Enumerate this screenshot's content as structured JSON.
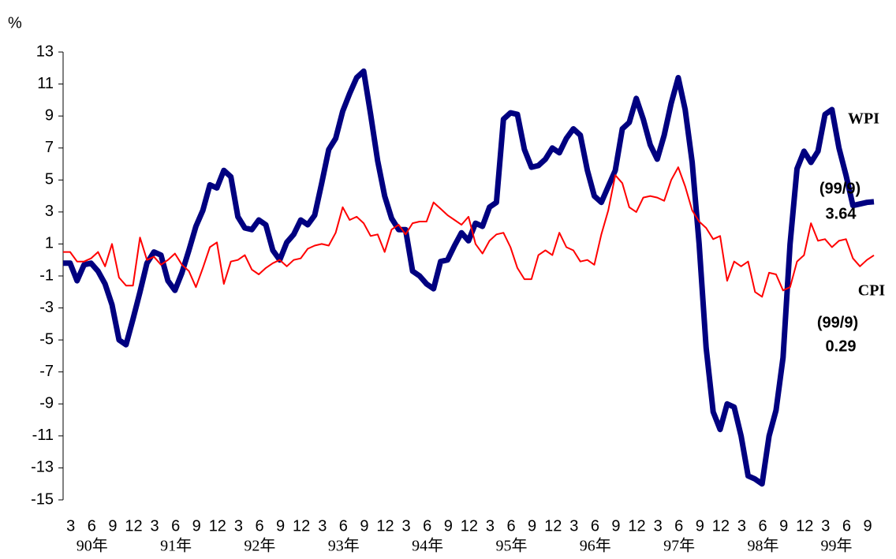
{
  "chart_data": {
    "type": "line",
    "y_unit": "%",
    "categories": [
      null,
      null,
      "3",
      null,
      null,
      "6",
      null,
      null,
      "9",
      null,
      null,
      "12",
      null,
      null,
      "3",
      null,
      null,
      "6",
      null,
      null,
      "9",
      null,
      null,
      "12",
      null,
      null,
      "3",
      null,
      null,
      "6",
      null,
      null,
      "9",
      null,
      null,
      "12",
      null,
      null,
      "3",
      null,
      null,
      "6",
      null,
      null,
      "9",
      null,
      null,
      "12",
      null,
      null,
      "3",
      null,
      null,
      "6",
      null,
      null,
      "9",
      null,
      null,
      "12",
      null,
      null,
      "3",
      null,
      null,
      "6",
      null,
      null,
      "9",
      null,
      null,
      "12",
      null,
      null,
      "3",
      null,
      null,
      "6",
      null,
      null,
      "9",
      null,
      null,
      "12",
      null,
      null,
      "3",
      null,
      null,
      "6",
      null,
      null,
      "9",
      null,
      null,
      "12",
      null,
      null,
      "3",
      null,
      null,
      "6",
      null,
      null,
      "9",
      null,
      null,
      "12",
      null,
      null,
      "3",
      null,
      null,
      "6",
      null,
      null,
      "9"
    ],
    "year_labels": [
      "90年",
      "91年",
      "92年",
      "93年",
      "94年",
      "95年",
      "96年",
      "97年",
      "98年",
      "99年"
    ],
    "series": [
      {
        "name": "WPI",
        "color": "#000080",
        "values": [
          -0.2,
          -0.2,
          -1.3,
          -0.3,
          -0.2,
          -0.7,
          -1.5,
          -2.8,
          -5.0,
          -5.3,
          -3.7,
          -2.0,
          -0.2,
          0.5,
          0.3,
          -1.3,
          -1.9,
          -0.8,
          0.6,
          2.1,
          3.1,
          4.7,
          4.5,
          5.6,
          5.2,
          2.7,
          2.0,
          1.9,
          2.5,
          2.2,
          0.6,
          0.0,
          1.1,
          1.6,
          2.5,
          2.2,
          2.8,
          4.8,
          6.9,
          7.6,
          9.3,
          10.4,
          11.4,
          11.8,
          9.1,
          6.2,
          4.0,
          2.6,
          1.9,
          1.9,
          -0.7,
          -1.0,
          -1.5,
          -1.8,
          -0.1,
          0.0,
          0.9,
          1.7,
          1.2,
          2.3,
          2.1,
          3.3,
          3.6,
          8.8,
          9.2,
          9.1,
          6.9,
          5.8,
          5.9,
          6.3,
          7.0,
          6.7,
          7.6,
          8.2,
          7.8,
          5.6,
          4.0,
          3.6,
          4.6,
          5.6,
          8.2,
          8.6,
          10.1,
          8.8,
          7.2,
          6.3,
          7.8,
          9.8,
          11.4,
          9.4,
          6.1,
          1.0,
          -5.5,
          -9.5,
          -10.6,
          -9.0,
          -9.2,
          -11.0,
          -13.5,
          -13.7,
          -14.0,
          -11.0,
          -9.4,
          -6.1,
          1.0,
          5.7,
          6.8,
          6.1,
          6.8,
          9.1,
          9.4,
          7.0,
          5.3,
          3.4,
          3.5,
          3.6,
          3.64
        ]
      },
      {
        "name": "CPI",
        "color": "#ff0000",
        "values": [
          0.5,
          0.5,
          -0.1,
          -0.1,
          0.1,
          0.5,
          -0.4,
          1.0,
          -1.1,
          -1.6,
          -1.6,
          1.4,
          0.0,
          0.2,
          -0.3,
          0.0,
          0.4,
          -0.3,
          -0.7,
          -1.7,
          -0.5,
          0.8,
          1.1,
          -1.5,
          -0.1,
          0.0,
          0.3,
          -0.6,
          -0.9,
          -0.5,
          -0.2,
          0.0,
          -0.4,
          0.0,
          0.1,
          0.7,
          0.9,
          1.0,
          0.9,
          1.7,
          3.3,
          2.5,
          2.7,
          2.3,
          1.5,
          1.6,
          0.5,
          1.9,
          2.2,
          1.6,
          2.3,
          2.4,
          2.4,
          3.6,
          3.2,
          2.8,
          2.5,
          2.2,
          2.7,
          1.0,
          0.4,
          1.2,
          1.6,
          1.7,
          0.8,
          -0.5,
          -1.2,
          -1.2,
          0.3,
          0.6,
          0.3,
          1.7,
          0.8,
          0.6,
          -0.1,
          0.0,
          -0.3,
          1.6,
          3.1,
          5.3,
          4.8,
          3.3,
          3.0,
          3.9,
          4.0,
          3.9,
          3.7,
          5.0,
          5.8,
          4.6,
          3.1,
          2.4,
          2.0,
          1.3,
          1.5,
          -1.3,
          -0.1,
          -0.4,
          -0.1,
          -2.0,
          -2.3,
          -0.8,
          -0.9,
          -1.9,
          -1.7,
          -0.1,
          0.3,
          2.3,
          1.2,
          1.3,
          0.8,
          1.2,
          1.3,
          0.1,
          -0.4,
          0.0,
          0.29
        ]
      }
    ],
    "annotations": [
      "WPI",
      "(99/9)",
      "3.64",
      "CPI",
      "(99/9)",
      "0.29"
    ],
    "ylim": [
      -15,
      13
    ],
    "yticks": [
      -15,
      -13,
      -11,
      -9,
      -7,
      -5,
      -3,
      -1,
      1,
      3,
      5,
      7,
      9,
      11,
      13
    ],
    "grid": false
  }
}
